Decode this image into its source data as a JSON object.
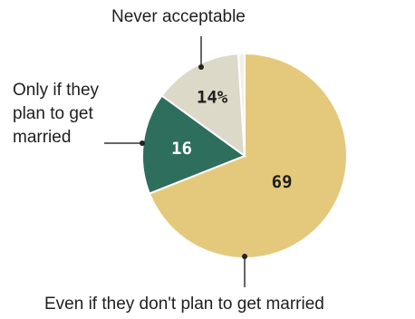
{
  "chart_data": {
    "type": "pie",
    "categories": [
      "Even if they don't plan to get married",
      "Only if they plan to get married",
      "Never acceptable",
      ""
    ],
    "values": [
      69,
      16,
      14,
      1
    ],
    "data_labels": [
      "69",
      "16",
      "14%",
      ""
    ],
    "colors": [
      "#e4c97d",
      "#2e6e5c",
      "#dcd9c8",
      "#f2f0e6"
    ],
    "label_text_colors": [
      "#1f1f1f",
      "#ffffff",
      "#1f1f1f",
      "#1f1f1f"
    ],
    "callouts": {
      "never": "Never acceptable",
      "only_if": [
        "Only if they",
        "plan to get",
        "married"
      ],
      "even_if": "Even if they don't plan to get married"
    }
  }
}
